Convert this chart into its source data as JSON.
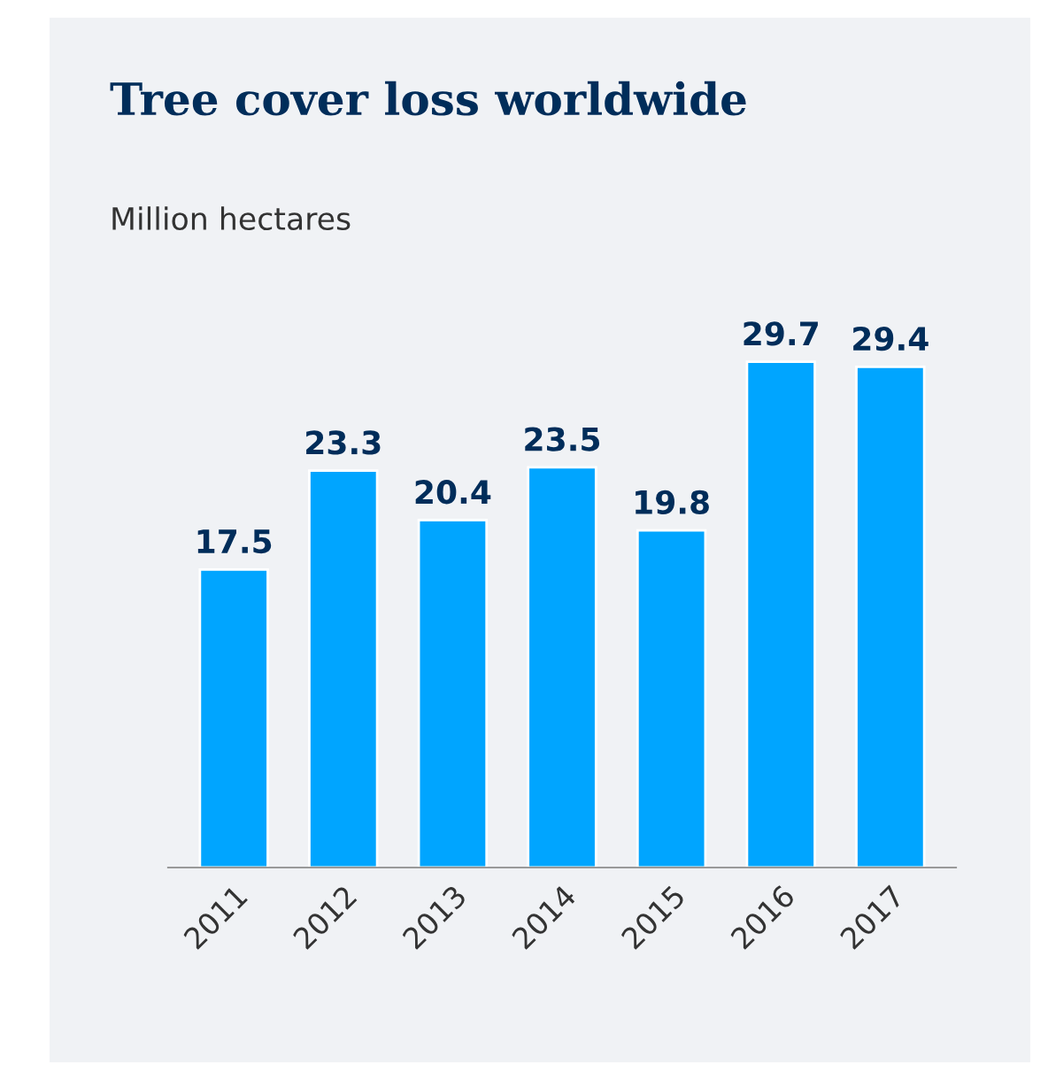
{
  "chart_data": {
    "type": "bar",
    "title": "Tree cover loss worldwide",
    "ylabel": "Million hectares",
    "categories": [
      "2011",
      "2012",
      "2013",
      "2014",
      "2015",
      "2016",
      "2017"
    ],
    "values": [
      17.5,
      23.3,
      20.4,
      23.5,
      19.8,
      29.7,
      29.4
    ],
    "color": "#00a5ff",
    "data_labels": true,
    "tick_labels": "x",
    "grid": false,
    "legend": false
  }
}
